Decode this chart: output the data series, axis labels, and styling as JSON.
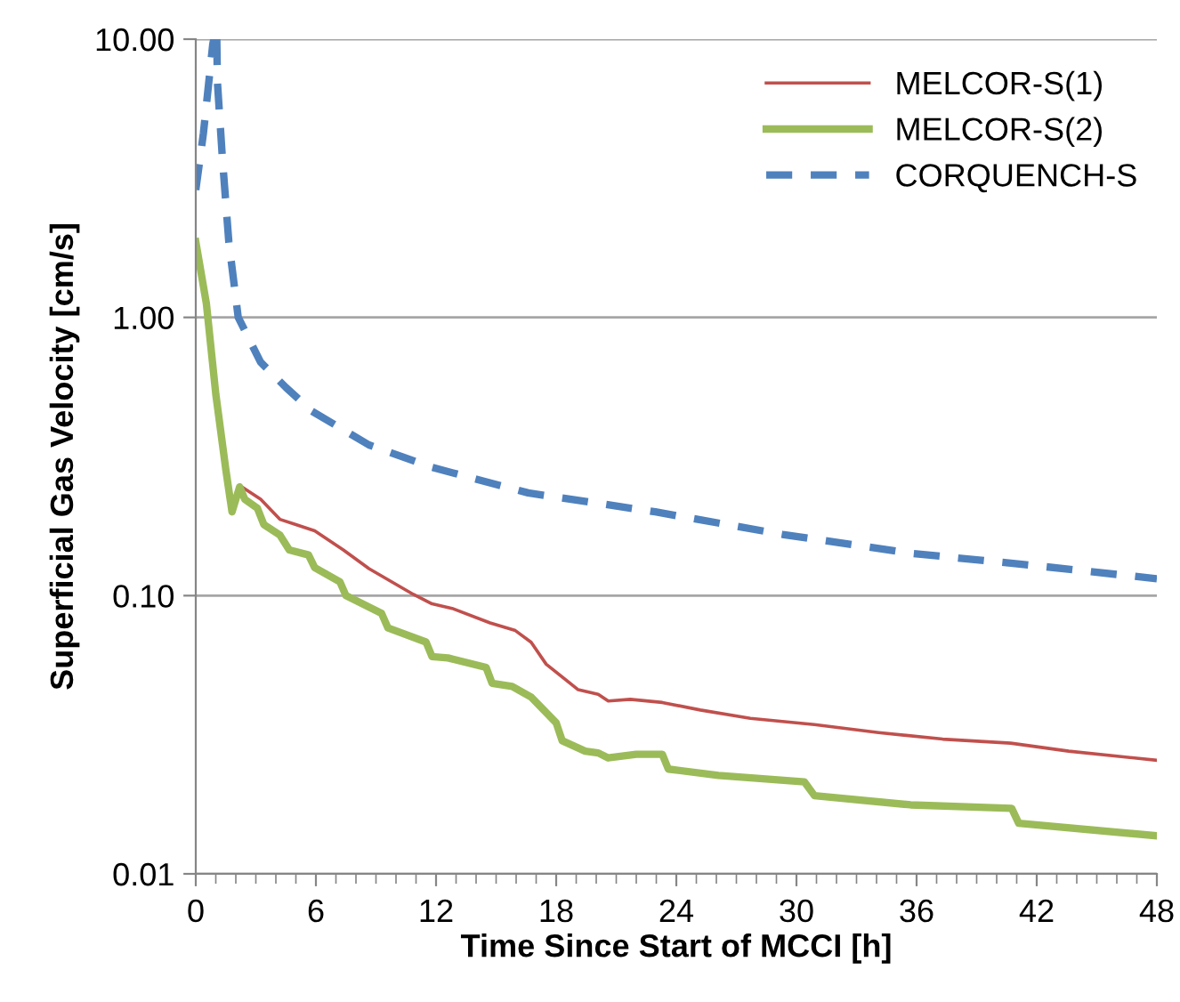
{
  "chart_data": {
    "type": "line",
    "xlabel": "Time Since Start of MCCI [h]",
    "ylabel": "Superficial Gas Velocity [cm/s]",
    "log": "y",
    "grid": "y",
    "legend": "top right",
    "xlim": [
      0,
      48
    ],
    "xticks": [
      0,
      6,
      12,
      18,
      24,
      30,
      36,
      42,
      48
    ],
    "ylim": [
      0.01,
      10
    ],
    "yticks": [
      {
        "value": 0.01,
        "label": "0.01"
      },
      {
        "value": 0.1,
        "label": "0.10"
      },
      {
        "value": 1,
        "label": "1.00"
      },
      {
        "value": 10,
        "label": "10.00"
      }
    ],
    "series": [
      {
        "name": "MELCOR-S(1)",
        "color": "#c0504d",
        "line_style": "solid",
        "x": [
          2.19,
          3.24,
          4.2,
          5.0,
          5.94,
          7.37,
          8.65,
          10.87,
          11.8,
          12.8,
          14.7,
          15.96,
          16.75,
          17.5,
          19.1,
          20.1,
          20.6,
          21.7,
          23.3,
          25.2,
          27.7,
          30.9,
          34.1,
          37.3,
          40.7,
          43.6,
          48
        ],
        "values": [
          0.249,
          0.222,
          0.188,
          0.18,
          0.171,
          0.146,
          0.125,
          0.101,
          0.0934,
          0.09,
          0.0798,
          0.0749,
          0.068,
          0.0567,
          0.0459,
          0.0442,
          0.0418,
          0.0424,
          0.0413,
          0.0388,
          0.0362,
          0.0344,
          0.0322,
          0.0305,
          0.0295,
          0.0276,
          0.0256
        ]
      },
      {
        "name": "MELCOR-S(2)",
        "color": "#9bbb59",
        "line_style": "solid",
        "x": [
          0,
          0.53,
          1.0,
          1.5,
          1.81,
          2.19,
          2.45,
          3.08,
          3.4,
          4.2,
          4.67,
          5.63,
          5.94,
          7.2,
          7.5,
          9.28,
          9.6,
          11.5,
          11.8,
          12.6,
          14.5,
          14.8,
          15.8,
          16.75,
          18.0,
          18.3,
          19.45,
          20.1,
          20.6,
          22.0,
          23.3,
          23.6,
          26.1,
          30.4,
          30.9,
          35.7,
          40.75,
          41.1,
          48
        ],
        "values": [
          1.87,
          1.12,
          0.53,
          0.284,
          0.2,
          0.246,
          0.222,
          0.206,
          0.18,
          0.165,
          0.146,
          0.14,
          0.126,
          0.112,
          0.1,
          0.0863,
          0.0765,
          0.0681,
          0.0604,
          0.0597,
          0.0552,
          0.0484,
          0.0472,
          0.0432,
          0.0349,
          0.0301,
          0.0276,
          0.0272,
          0.0261,
          0.0269,
          0.0269,
          0.0238,
          0.0226,
          0.0214,
          0.0191,
          0.0177,
          0.0172,
          0.0152,
          0.0137
        ]
      },
      {
        "name": "CORQUENCH-S",
        "color": "#4f81bd",
        "line_style": "dashed",
        "x": [
          0,
          0.38,
          0.85,
          0.9,
          0.98,
          1.05,
          1.08,
          1.33,
          1.65,
          2.12,
          3.24,
          4.5,
          5.8,
          8.65,
          11.8,
          16.6,
          22.95,
          29.3,
          35.7,
          42.0,
          48
        ],
        "values": [
          2.87,
          4.58,
          9.6,
          10,
          null,
          10,
          7.03,
          3.73,
          1.87,
          1.0,
          0.69,
          0.56,
          0.46,
          0.348,
          0.289,
          0.234,
          0.2,
          0.166,
          0.142,
          0.128,
          0.115
        ]
      }
    ]
  }
}
